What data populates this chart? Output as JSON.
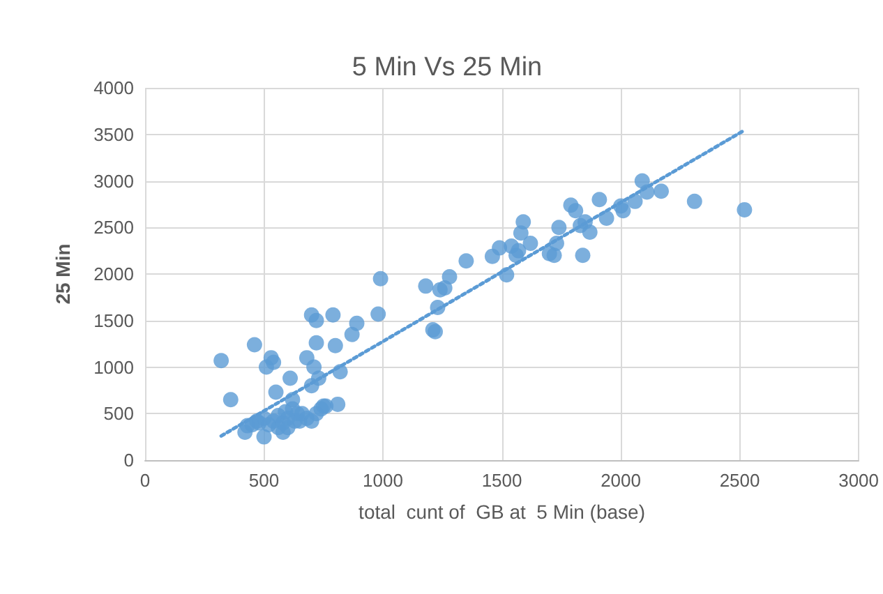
{
  "chart_data": {
    "type": "scatter",
    "title": "5 Min Vs 25 Min",
    "xlabel": "total  cunt of  GB at  5 Min (base)",
    "ylabel": "25 Min",
    "xlim": [
      0,
      3000
    ],
    "xticks": [
      0,
      500,
      1000,
      1500,
      2000,
      2500,
      3000
    ],
    "ylim": [
      0,
      4000
    ],
    "yticks": [
      0,
      500,
      1000,
      1500,
      2000,
      2500,
      3000,
      3500,
      4000
    ],
    "grid": true,
    "marker": "circle",
    "series": [
      {
        "color": "#5b9bd5",
        "x": [
          320,
          360,
          420,
          430,
          460,
          480,
          500,
          510,
          530,
          540,
          550,
          560,
          580,
          600,
          610,
          620,
          640,
          650,
          680,
          700,
          710,
          720,
          720,
          700,
          730,
          750,
          790,
          800,
          810,
          820,
          870,
          890,
          980,
          990,
          1180,
          1210,
          1220,
          1230,
          1240,
          1260,
          1280,
          1350,
          1460,
          1490,
          1520,
          1540,
          1560,
          1570,
          1580,
          1590,
          1620,
          1700,
          1720,
          1730,
          1740,
          1790,
          1810,
          1830,
          1840,
          1850,
          1870,
          1910,
          1940,
          2000,
          2010,
          2060,
          2090,
          2110,
          2170,
          2310,
          2520,
          450,
          470,
          500,
          520,
          540,
          560,
          580,
          590,
          600,
          620,
          630,
          660,
          680,
          700,
          720,
          740,
          760
        ],
        "values": [
          1070,
          650,
          300,
          370,
          1240,
          400,
          250,
          1000,
          1100,
          1050,
          730,
          350,
          300,
          450,
          880,
          650,
          500,
          420,
          1100,
          1560,
          1000,
          1500,
          1260,
          800,
          880,
          580,
          1560,
          1230,
          600,
          950,
          1350,
          1470,
          1570,
          1950,
          1870,
          1400,
          1380,
          1640,
          1830,
          1850,
          1970,
          2140,
          2190,
          2280,
          1990,
          2300,
          2200,
          2250,
          2440,
          2560,
          2330,
          2220,
          2200,
          2330,
          2500,
          2740,
          2680,
          2520,
          2200,
          2560,
          2450,
          2800,
          2600,
          2730,
          2680,
          2780,
          3000,
          2880,
          2890,
          2780,
          2690,
          380,
          420,
          450,
          380,
          420,
          480,
          400,
          520,
          350,
          550,
          420,
          500,
          450,
          420,
          500,
          550,
          580
        ]
      },
      {
        "type": "line",
        "color": "#5b9bd5",
        "line_style": "dotted",
        "marker": "none",
        "x": [
          320,
          2510
        ],
        "values": [
          260,
          3530
        ]
      }
    ]
  }
}
